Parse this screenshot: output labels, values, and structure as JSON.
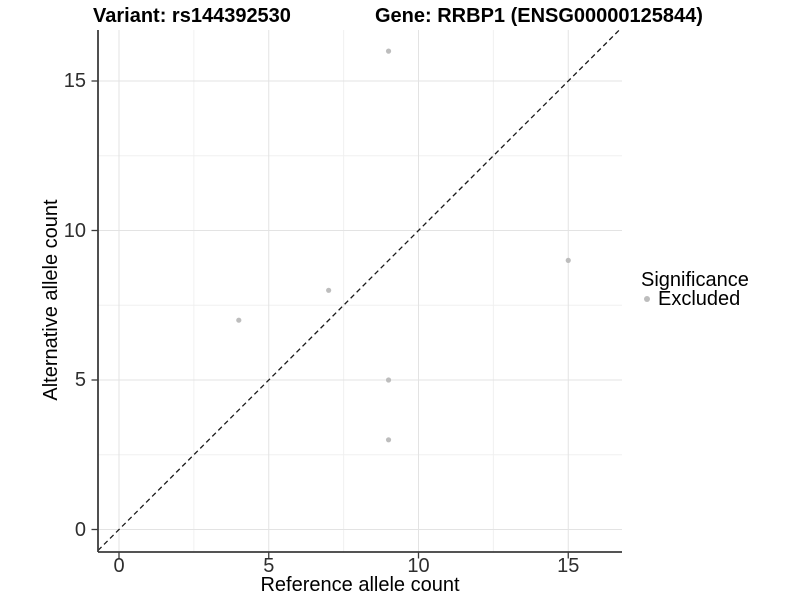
{
  "figure": {
    "title_left": "Variant: rs144392530",
    "title_right": "Gene: RRBP1 (ENSG00000125844)"
  },
  "chart_data": {
    "type": "scatter",
    "title": "Variant: rs144392530 | Gene: RRBP1 (ENSG00000125844)",
    "xlabel": "Reference allele count",
    "ylabel": "Alternative allele count",
    "xlim": [
      -0.7,
      16.7
    ],
    "ylim": [
      -0.75,
      16.7
    ],
    "x_major_ticks": [
      0,
      5,
      10,
      15
    ],
    "y_major_ticks": [
      0,
      5,
      10,
      15
    ],
    "x_minor_ticks": [
      2.5,
      7.5,
      12.5
    ],
    "y_minor_ticks": [
      2.5,
      7.5,
      12.5
    ],
    "grid": "major and minor, light gray, white panel",
    "series": [
      {
        "name": "Excluded",
        "color": "#bdbdbd",
        "points": [
          [
            9,
            16
          ],
          [
            15,
            9
          ],
          [
            7,
            8
          ],
          [
            4,
            7
          ],
          [
            9,
            5
          ],
          [
            9,
            3
          ]
        ]
      }
    ],
    "reference_line": {
      "type": "identity y=x",
      "style": "dashed",
      "color": "#1a1a1a"
    },
    "legend": {
      "title": "Significance",
      "position": "right",
      "items": [
        {
          "label": "Excluded",
          "marker": "point",
          "color": "#bdbdbd"
        }
      ]
    }
  },
  "colors": {
    "background": "#ffffff",
    "point": "#bdbdbd",
    "grid_major": "#e3e3e3",
    "grid_minor": "#f0f0f0",
    "axis": "#3c3c3c",
    "text": "#000000",
    "reference_line": "#1a1a1a"
  }
}
